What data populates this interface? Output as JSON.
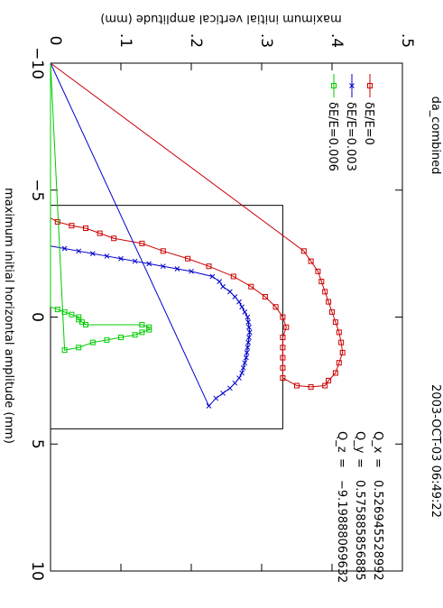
{
  "chart_data": {
    "type": "line",
    "title": "da_combined",
    "timestamp": "2003-OCT-03 06:49:22",
    "xlabel": "maximum initial horizontal amplitude (mm)",
    "ylabel": "maximum initial vertical amplitude (mm)",
    "xlim": [
      -10,
      10
    ],
    "ylim": [
      0,
      0.5
    ],
    "x_ticks": [
      -10,
      -5,
      0,
      5,
      10
    ],
    "x_tick_labels": [
      "−10",
      "−5",
      "0",
      "5",
      "10"
    ],
    "y_ticks": [
      0,
      0.1,
      0.2,
      0.3,
      0.4,
      0.5
    ],
    "y_tick_labels": [
      "0",
      ".1",
      ".2",
      ".3",
      ".4",
      ".5"
    ],
    "grid": false,
    "legend_position": "top-left",
    "tune_info": [
      {
        "label": "Q_x",
        "eq": "=",
        "value": "0.526945528992"
      },
      {
        "label": "Q_y",
        "eq": "=",
        "value": "0.575885856885"
      },
      {
        "label": "Q_z",
        "eq": "=",
        "value": "−9.19888069632"
      }
    ],
    "aperture_box": {
      "x": [
        -4.4,
        4.4
      ],
      "y": [
        0,
        0.33
      ]
    },
    "series": [
      {
        "name": "δE/E=0",
        "color": "#cc0000",
        "marker": "square",
        "x": [
          -10,
          -3.9,
          -3.75,
          -3.6,
          -3.5,
          -3.3,
          -3.1,
          -2.9,
          -2.6,
          -2.3,
          -2.0,
          -1.6,
          -1.2,
          -0.8,
          -0.4,
          0.0,
          0.4,
          0.8,
          1.2,
          1.6,
          2.0,
          2.4,
          2.7,
          2.75,
          2.7,
          2.5,
          2.2,
          1.8,
          1.4,
          1.0,
          0.6,
          0.2,
          -0.2,
          -0.6,
          -1.0,
          -1.4,
          -1.8,
          -2.2,
          -2.6,
          -10
        ],
        "y": [
          0,
          0,
          0.01,
          0.03,
          0.05,
          0.07,
          0.09,
          0.13,
          0.16,
          0.195,
          0.225,
          0.26,
          0.285,
          0.305,
          0.32,
          0.33,
          0.335,
          0.33,
          0.33,
          0.33,
          0.33,
          0.33,
          0.35,
          0.37,
          0.39,
          0.395,
          0.405,
          0.41,
          0.415,
          0.413,
          0.41,
          0.405,
          0.4,
          0.395,
          0.39,
          0.385,
          0.38,
          0.37,
          0.36,
          0
        ]
      },
      {
        "name": "δE/E=0.003",
        "color": "#0000cc",
        "marker": "x",
        "x": [
          -10,
          -2.8,
          -2.7,
          -2.6,
          -2.5,
          -2.4,
          -2.3,
          -2.2,
          -2.1,
          -2.0,
          -1.9,
          -1.8,
          -1.6,
          -1.4,
          -1.2,
          -1.0,
          -0.8,
          -0.6,
          -0.4,
          -0.2,
          0.0,
          0.2,
          0.4,
          0.6,
          0.8,
          1.0,
          1.2,
          1.4,
          1.6,
          1.8,
          2.0,
          2.2,
          2.4,
          2.6,
          2.8,
          3.0,
          3.2,
          3.5,
          -10
        ],
        "y": [
          0,
          0,
          0.02,
          0.04,
          0.06,
          0.08,
          0.1,
          0.12,
          0.14,
          0.16,
          0.18,
          0.2,
          0.23,
          0.24,
          0.245,
          0.255,
          0.262,
          0.268,
          0.272,
          0.276,
          0.28,
          0.281,
          0.282,
          0.283,
          0.282,
          0.281,
          0.28,
          0.279,
          0.278,
          0.276,
          0.274,
          0.272,
          0.268,
          0.262,
          0.255,
          0.245,
          0.235,
          0.225,
          0
        ]
      },
      {
        "name": "δE/E=0.006",
        "color": "#00cc00",
        "marker": "square",
        "x": [
          -10,
          -0.4,
          -0.3,
          -0.2,
          -0.1,
          0.0,
          0.1,
          0.2,
          0.3,
          0.3,
          0.4,
          0.5,
          0.6,
          0.7,
          0.8,
          0.9,
          1.0,
          1.2,
          1.3,
          -10
        ],
        "y": [
          0,
          0,
          0.01,
          0.02,
          0.03,
          0.04,
          0.04,
          0.045,
          0.05,
          0.13,
          0.14,
          0.14,
          0.13,
          0.12,
          0.1,
          0.08,
          0.06,
          0.04,
          0.02,
          0
        ]
      }
    ]
  }
}
